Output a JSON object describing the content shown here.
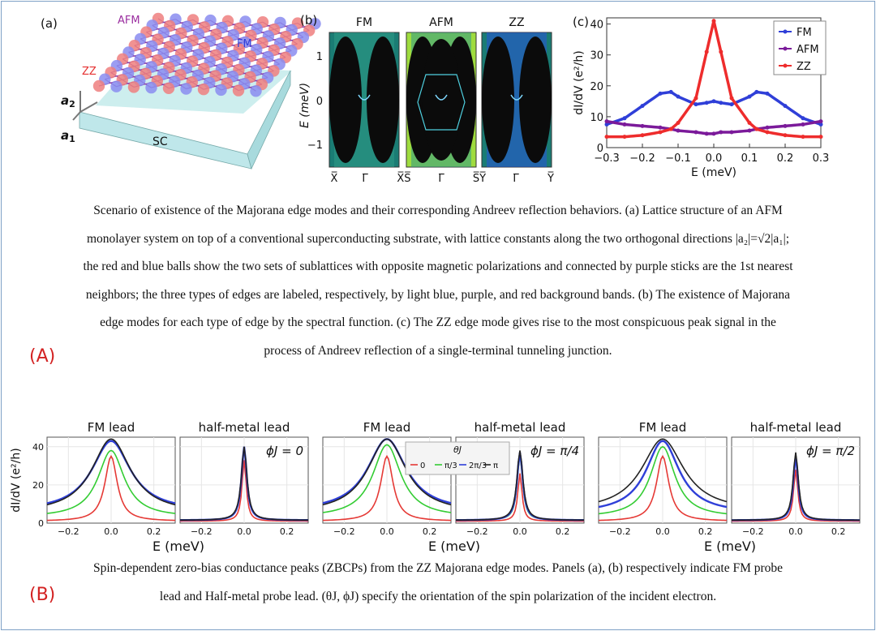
{
  "figure_a": {
    "lattice": {
      "panel_label": "(a)",
      "edge_labels": [
        "AFM",
        "FM",
        "ZZ"
      ],
      "vector_labels": [
        "a",
        "2",
        "a",
        "1"
      ],
      "substrate_label": "SC"
    },
    "spectral": {
      "panel_label": "(b)",
      "panel_titles": [
        "FM",
        "AFM",
        "ZZ"
      ],
      "ylabel": "E (meV)",
      "yticks": [
        "1",
        "0",
        "−1"
      ],
      "xticks": [
        "X̅",
        "Γ̅",
        "X̅S̅",
        "Γ̅",
        "S̅Y̅",
        "Γ̅",
        "Y̅"
      ]
    },
    "caption_lines": [
      "Scenario of existence of the Majorana edge modes and their corresponding Andreev reflection behaviors. (a) Lattice structure of an AFM",
      "monolayer system on top of a conventional superconducting substrate, with lattice constants along the two orthogonal directions |a₂|=√2|a₁|;",
      "the red and blue balls show the two sets of sublattices with opposite magnetic polarizations and connected by purple sticks are the 1st nearest",
      "neighbors; the three types of edges are labeled, respectively, by light blue, purple, and red background bands. (b) The existence of Majorana",
      "edge modes for each type of edge by the spectral function. (c) The ZZ edge mode gives rise to the most conspicuous peak signal in the",
      "process of Andreev reflection of a single-terminal tunneling junction."
    ],
    "tag": "(A)"
  },
  "figure_b": {
    "panel_titles": [
      "FM lead",
      "half-metal lead",
      "FM lead",
      "half-metal lead",
      "FM lead",
      "half-metal lead"
    ],
    "phi_labels": [
      "ϕJ = 0",
      "ϕJ = π/4",
      "ϕJ = π/2"
    ],
    "ylabel": "dI/dV (e²/h)",
    "xlabel": "E (meV)",
    "yticks": [
      "0",
      "20",
      "40"
    ],
    "xticks": [
      "−0.2",
      "0.0",
      "0.2"
    ],
    "legend": {
      "title": "θJ",
      "entries": [
        "0",
        "π/3",
        "2π/3",
        "π"
      ]
    },
    "caption_lines": [
      "Spin-dependent zero-bias conductance peaks (ZBCPs) from the ZZ Majorana edge modes. Panels (a), (b) respectively indicate FM probe",
      "lead and Half-metal probe lead. (θJ, ϕJ) specify the orientation of the spin polarization of the incident electron."
    ],
    "tag": "(B)"
  },
  "chart_data": [
    {
      "type": "line",
      "panel_label": "(c)",
      "xlabel": "E (meV)",
      "ylabel": "dI/dV (e²/h)",
      "xlim": [
        -0.3,
        0.3
      ],
      "ylim": [
        0,
        42
      ],
      "xticks": [
        -0.3,
        -0.2,
        -0.1,
        0.0,
        0.1,
        0.2,
        0.3
      ],
      "yticks": [
        0,
        10,
        20,
        30,
        40
      ],
      "legend_position": "top-right",
      "colors": {
        "FM": "#2f3fd8",
        "AFM": "#7b1a9a",
        "ZZ": "#ee2c2c"
      },
      "x": [
        -0.3,
        -0.25,
        -0.2,
        -0.15,
        -0.12,
        -0.1,
        -0.05,
        -0.02,
        0.0,
        0.02,
        0.05,
        0.1,
        0.12,
        0.15,
        0.2,
        0.25,
        0.3
      ],
      "series": [
        {
          "name": "FM",
          "values": [
            7.5,
            9.5,
            13.5,
            17.5,
            18,
            16.5,
            14,
            14.5,
            15,
            14.5,
            14,
            16.5,
            18,
            17.5,
            13.5,
            9.5,
            7.5
          ]
        },
        {
          "name": "AFM",
          "values": [
            8.5,
            7.5,
            7,
            6.5,
            6,
            5.5,
            5,
            4.5,
            4.5,
            5,
            5,
            5.5,
            6,
            6.5,
            7,
            7.5,
            8.5
          ]
        },
        {
          "name": "ZZ",
          "values": [
            3.5,
            3.5,
            4,
            5,
            6,
            8,
            16,
            31,
            41,
            31,
            16,
            8,
            6,
            5,
            4,
            3.5,
            3.5
          ]
        }
      ]
    },
    {
      "type": "line",
      "panels": [
        {
          "title": "FM lead",
          "peaks": [
            35,
            38,
            43,
            44
          ],
          "widths": [
            0.035,
            0.075,
            0.11,
            0.11
          ],
          "bases": [
            1,
            3,
            6,
            5
          ]
        },
        {
          "title": "half-metal lead",
          "phi": "ϕJ = 0",
          "peaks": [
            33,
            40,
            40,
            40
          ],
          "widths": [
            0.012,
            0.015,
            0.015,
            0.016
          ],
          "bases": [
            1,
            1.5,
            1.5,
            1.5
          ]
        },
        {
          "title": "FM lead",
          "peaks": [
            35,
            41,
            44,
            44
          ],
          "widths": [
            0.035,
            0.08,
            0.11,
            0.11
          ],
          "bases": [
            1,
            3,
            6,
            5
          ]
        },
        {
          "title": "half-metal lead",
          "phi": "ϕJ = π/4",
          "peaks": [
            26,
            36,
            37,
            38
          ],
          "widths": [
            0.012,
            0.015,
            0.016,
            0.017
          ],
          "bases": [
            1,
            1.5,
            1.5,
            1.5
          ]
        },
        {
          "title": "FM lead",
          "peaks": [
            35,
            40,
            43,
            44
          ],
          "widths": [
            0.035,
            0.07,
            0.095,
            0.12
          ],
          "bases": [
            1,
            3,
            5,
            6
          ]
        },
        {
          "title": "half-metal lead",
          "phi": "ϕJ = π/2",
          "peaks": [
            28,
            36,
            35,
            37
          ],
          "widths": [
            0.012,
            0.014,
            0.014,
            0.015
          ],
          "bases": [
            1,
            1.5,
            1.5,
            1.5
          ]
        }
      ],
      "series_names": [
        "0",
        "π/3",
        "2π/3",
        "π"
      ],
      "colors": [
        "#e53935",
        "#33cc33",
        "#2f3fd8",
        "#222222"
      ],
      "xlim": [
        -0.3,
        0.3
      ],
      "ylim": [
        0,
        45
      ]
    }
  ]
}
